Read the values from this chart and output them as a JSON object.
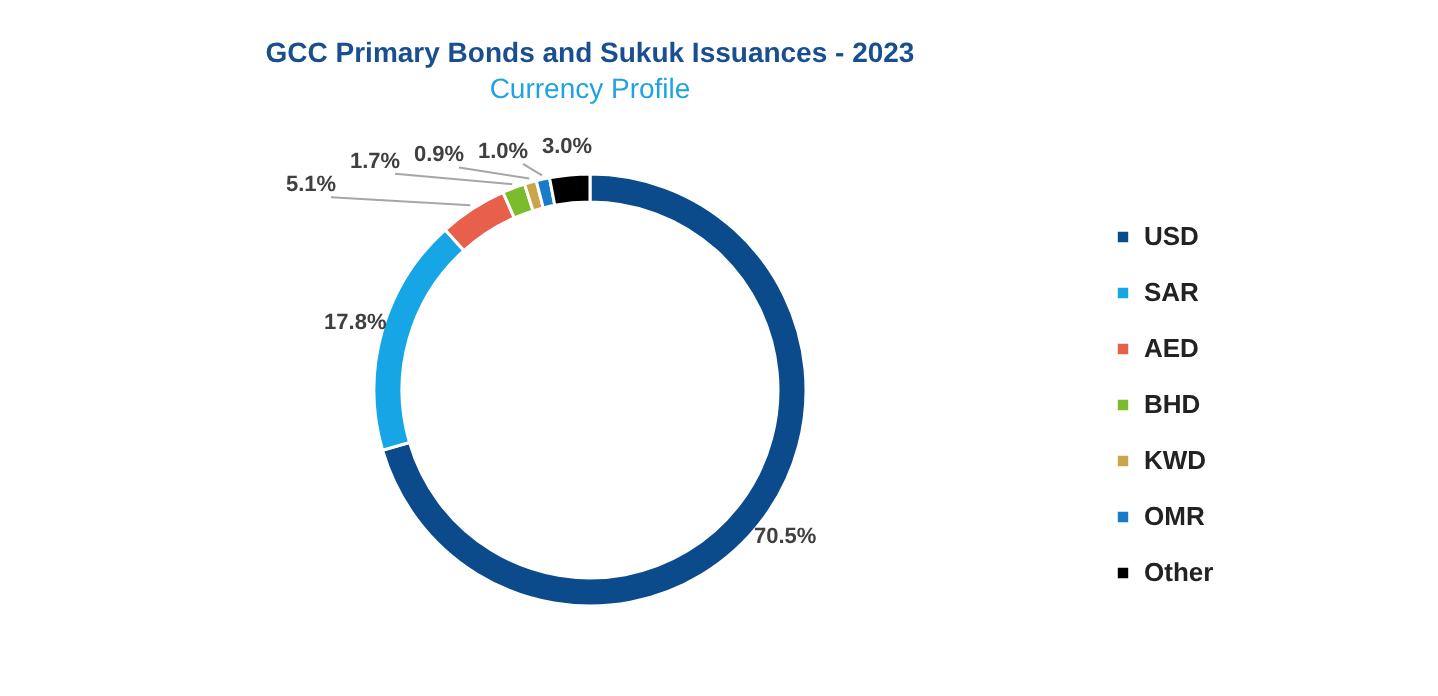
{
  "chart_data": {
    "type": "donut",
    "title": "GCC Primary Bonds and Sukuk Issuances - 2023",
    "subtitle": "Currency Profile",
    "categories": [
      "USD",
      "SAR",
      "AED",
      "BHD",
      "KWD",
      "OMR",
      "Other"
    ],
    "values": [
      70.5,
      17.8,
      5.1,
      1.7,
      0.9,
      1.0,
      3.0
    ],
    "colors": [
      "#0b4a8b",
      "#16a6e6",
      "#e8604c",
      "#7cbb2c",
      "#c9a64a",
      "#1a7cc8",
      "#000000"
    ],
    "value_labels": [
      "70.5%",
      "17.8%",
      "5.1%",
      "1.7%",
      "0.9%",
      "1.0%",
      "3.0%"
    ],
    "legend": "right"
  }
}
